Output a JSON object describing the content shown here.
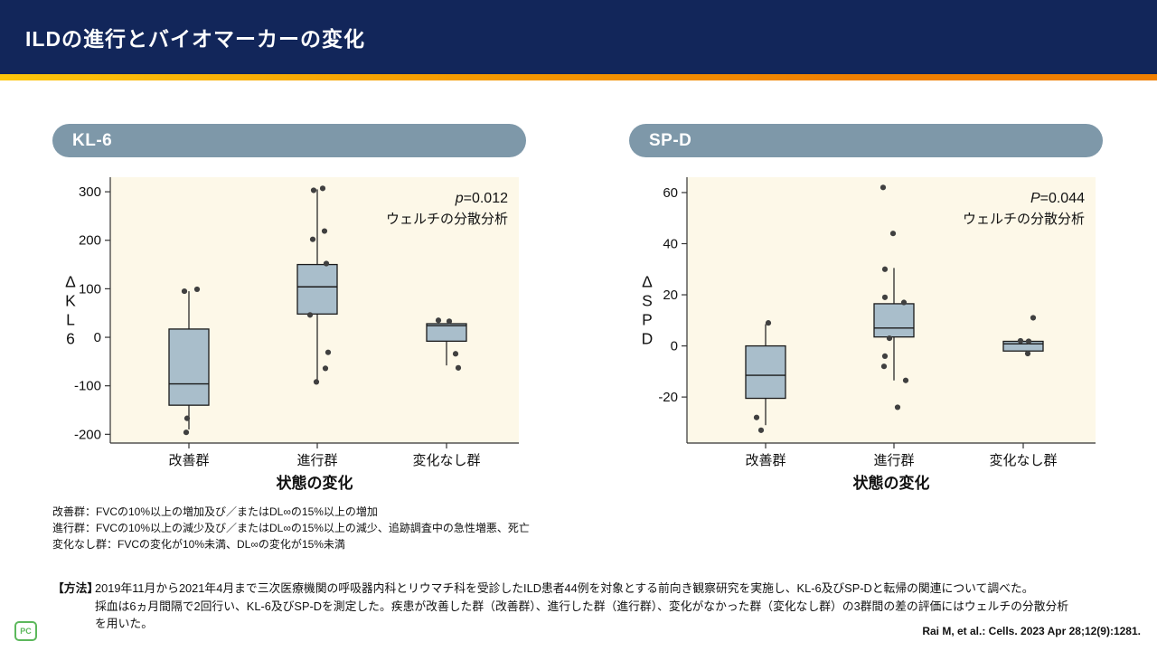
{
  "header": {
    "title": "ILDの進行とバイオマーカーの変化"
  },
  "panels": [
    {
      "label": "KL-6"
    },
    {
      "label": "SP-D"
    }
  ],
  "chart_data": [
    {
      "type": "box",
      "name": "KL-6",
      "stat_label": {
        "italic": "p",
        "rest": "=0.012"
      },
      "method_label": "ウェルチの分散分析",
      "categories": [
        "改善群",
        "進行群",
        "変化なし群"
      ],
      "xlabel": "状態の変化",
      "ylabel": "ΔKL6",
      "yticks": [
        300,
        200,
        100,
        0,
        -100,
        -200
      ],
      "ylim": [
        -218,
        330
      ],
      "grid": false,
      "boxes": [
        {
          "category": "改善群",
          "q1": -140,
          "median": -96,
          "q3": 17,
          "whisker_low": -190,
          "whisker_high": 95,
          "points": [
            {
              "v": 95,
              "dx": -5
            },
            {
              "v": 99,
              "dx": 9
            },
            {
              "v": -167,
              "dx": -2
            },
            {
              "v": -196,
              "dx": -3
            }
          ]
        },
        {
          "category": "進行群",
          "q1": 48,
          "median": 104,
          "q3": 150,
          "whisker_low": -92,
          "whisker_high": 305,
          "points": [
            {
              "v": 303,
              "dx": -4
            },
            {
              "v": 307,
              "dx": 6
            },
            {
              "v": 219,
              "dx": 8
            },
            {
              "v": 202,
              "dx": -5
            },
            {
              "v": 152,
              "dx": 10
            },
            {
              "v": 46,
              "dx": -8
            },
            {
              "v": -31,
              "dx": 12
            },
            {
              "v": -64,
              "dx": 9
            },
            {
              "v": -92,
              "dx": -1
            }
          ]
        },
        {
          "category": "変化なし群",
          "q1": -8,
          "median": 24,
          "q3": 28,
          "whisker_low": -58,
          "whisker_high": 28,
          "points": [
            {
              "v": 35,
              "dx": -9
            },
            {
              "v": 33,
              "dx": 3
            },
            {
              "v": -34,
              "dx": 10
            },
            {
              "v": -63,
              "dx": 13
            }
          ]
        }
      ]
    },
    {
      "type": "box",
      "name": "SP-D",
      "stat_label": {
        "italic": "P",
        "rest": "=0.044"
      },
      "method_label": "ウェルチの分散分析",
      "categories": [
        "改善群",
        "進行群",
        "変化なし群"
      ],
      "xlabel": "状態の変化",
      "ylabel": "ΔSPD",
      "yticks": [
        60,
        40,
        20,
        0,
        -20
      ],
      "ylim": [
        -38,
        66
      ],
      "grid": false,
      "boxes": [
        {
          "category": "改善群",
          "q1": -20.5,
          "median": -11.5,
          "q3": 0,
          "whisker_low": -31,
          "whisker_high": 8.5,
          "points": [
            {
              "v": 9,
              "dx": 3
            },
            {
              "v": -28,
              "dx": -10
            },
            {
              "v": -33,
              "dx": -5
            }
          ]
        },
        {
          "category": "進行群",
          "q1": 3.5,
          "median": 7,
          "q3": 16.5,
          "whisker_low": -13.5,
          "whisker_high": 30.5,
          "points": [
            {
              "v": 62,
              "dx": -12
            },
            {
              "v": 44,
              "dx": -1
            },
            {
              "v": 30,
              "dx": -10
            },
            {
              "v": 19,
              "dx": -10
            },
            {
              "v": 17,
              "dx": 11
            },
            {
              "v": 3,
              "dx": -5
            },
            {
              "v": -4,
              "dx": -10
            },
            {
              "v": -8,
              "dx": -11
            },
            {
              "v": -13.5,
              "dx": 13
            },
            {
              "v": -24,
              "dx": 4
            }
          ]
        },
        {
          "category": "変化なし群",
          "q1": -2,
          "median": 0.8,
          "q3": 1.8,
          "whisker_low": -2,
          "whisker_high": 1.8,
          "points": [
            {
              "v": 11,
              "dx": 11
            },
            {
              "v": 2,
              "dx": -3
            },
            {
              "v": 1.8,
              "dx": 6
            },
            {
              "v": -3,
              "dx": 5
            }
          ]
        }
      ]
    }
  ],
  "footnotes": {
    "lines": [
      "改善群：FVCの10%以上の増加及び／またはDL∞の15%以上の増加",
      "進行群：FVCの10%以上の減少及び／またはDL∞の15%以上の減少、追跡調査中の急性増悪、死亡",
      "変化なし群：FVCの変化が10%未満、DL∞の変化が15%未満"
    ]
  },
  "methods": {
    "label": "【方法】",
    "lines": [
      "2019年11月から2021年4月まで三次医療機関の呼吸器内科とリウマチ科を受診したILD患者44例を対象とする前向き観察研究を実施し、KL-6及びSP-Dと転帰の関連について調べた。",
      "採血は6ヵ月間隔で2回行い、KL-6及びSP-Dを測定した。疾患が改善した群（改善群）、進行した群（進行群）、変化がなかった群（変化なし群）の3群間の差の評価にはウェルチの分散分析",
      "を用いた。"
    ]
  },
  "citation": "Rai M, et al.: Cells. 2023 Apr 28;12(9):1281.",
  "logo": {
    "text": "PC"
  },
  "colors": {
    "header_navy": "#12265a",
    "gradient_left": "#fdc60b",
    "gradient_right": "#f07f00",
    "panel_pill": "#7e98a9",
    "plot_bg": "#fdf8e8",
    "box_fill": "#a9becb",
    "box_stroke": "#1a1a1a",
    "point": "#404040",
    "logo_green": "#5cb85c"
  }
}
